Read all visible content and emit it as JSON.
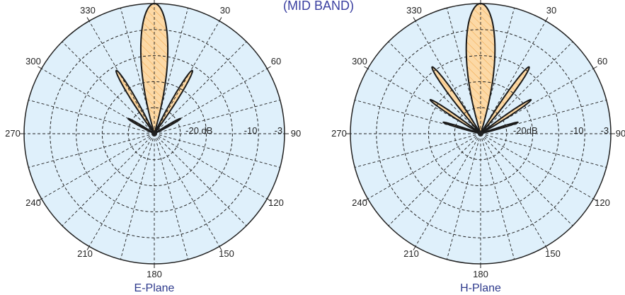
{
  "header": {
    "band_label": "(MID BAND)"
  },
  "colors": {
    "disc_fill": "#dff0fb",
    "lobe_fill": "#fcd9a6",
    "lobe_hatch": "#f0a64a",
    "grid": "#222222",
    "title": "#2e3a8c"
  },
  "chart_data": [
    {
      "type": "polar",
      "title": "E-Plane",
      "angle_ticks": [
        "330",
        "30",
        "300",
        "60",
        "270",
        "90",
        "240",
        "120",
        "210",
        "150",
        "180"
      ],
      "radial_labels": [
        "-20 dB",
        "-10",
        "-3"
      ],
      "radial_levels_db": [
        -20,
        -10,
        -3
      ],
      "radial_range_db": [
        -30,
        0
      ],
      "grid": true,
      "lobes": [
        {
          "name": "main",
          "center_deg": 0,
          "peak_db": 0,
          "half_width_deg": 16
        },
        {
          "name": "side-left",
          "center_deg": 329,
          "peak_db": -13,
          "half_width_deg": 5
        },
        {
          "name": "side-right",
          "center_deg": 31,
          "peak_db": -13,
          "half_width_deg": 5
        },
        {
          "name": "minor-left",
          "center_deg": 300,
          "peak_db": -23,
          "half_width_deg": 4
        },
        {
          "name": "minor-right",
          "center_deg": 60,
          "peak_db": -23,
          "half_width_deg": 4
        }
      ]
    },
    {
      "type": "polar",
      "title": "H-Plane",
      "angle_ticks": [
        "330",
        "30",
        "300",
        "60",
        "270",
        "90",
        "240",
        "120",
        "210",
        "150",
        "180"
      ],
      "radial_labels": [
        "-20dB",
        "-10",
        "-3"
      ],
      "radial_levels_db": [
        -20,
        -10,
        -3
      ],
      "radial_range_db": [
        -30,
        0
      ],
      "grid": true,
      "lobes": [
        {
          "name": "main",
          "center_deg": 0,
          "peak_db": 0,
          "half_width_deg": 17
        },
        {
          "name": "side-left",
          "center_deg": 324,
          "peak_db": -11,
          "half_width_deg": 5
        },
        {
          "name": "side-right",
          "center_deg": 36,
          "peak_db": -11,
          "half_width_deg": 5
        },
        {
          "name": "side2-left",
          "center_deg": 304,
          "peak_db": -16,
          "half_width_deg": 4
        },
        {
          "name": "side2-right",
          "center_deg": 56,
          "peak_db": -16,
          "half_width_deg": 4
        },
        {
          "name": "minor-left",
          "center_deg": 287,
          "peak_db": -21,
          "half_width_deg": 3
        },
        {
          "name": "minor-right",
          "center_deg": 73,
          "peak_db": -21,
          "half_width_deg": 3
        }
      ]
    }
  ]
}
